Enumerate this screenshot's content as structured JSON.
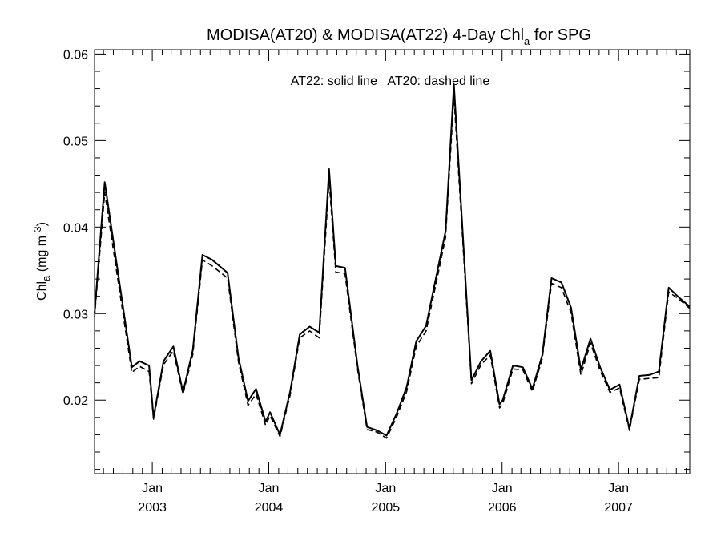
{
  "chart_data": {
    "type": "line",
    "title": {
      "main_before": "MODISA(AT20) & MODISA(AT22) 4-Day Chl",
      "main_sub": "a",
      "main_after": " for SPG"
    },
    "annotation": "AT22: solid line   AT20: dashed line",
    "ylabel": {
      "pre": "Chl",
      "sub": "a",
      "mid": " (mg m",
      "sup": "-3",
      "post": ")"
    },
    "ylim": [
      0.0115,
      0.0605
    ],
    "yticks": [
      0.02,
      0.03,
      0.04,
      0.05,
      0.06
    ],
    "ytick_labels": [
      "0.02",
      "0.03",
      "0.04",
      "0.05",
      "0.06"
    ],
    "xlim": [
      "2002-07-04",
      "2007-08-12"
    ],
    "xticks": [
      {
        "date": "2003-01-01",
        "month": "Jan",
        "year": "2003"
      },
      {
        "date": "2004-01-01",
        "month": "Jan",
        "year": "2004"
      },
      {
        "date": "2005-01-01",
        "month": "Jan",
        "year": "2005"
      },
      {
        "date": "2006-01-01",
        "month": "Jan",
        "year": "2006"
      },
      {
        "date": "2007-01-01",
        "month": "Jan",
        "year": "2007"
      }
    ],
    "series": [
      {
        "name": "AT22",
        "style": "solid",
        "x": [
          "2002-07-04",
          "2002-08-05",
          "2002-10-29",
          "2002-11-22",
          "2002-12-22",
          "2003-01-05",
          "2003-02-05",
          "2003-03-08",
          "2003-04-07",
          "2003-05-08",
          "2003-06-07",
          "2003-07-08",
          "2003-08-25",
          "2003-09-28",
          "2003-10-28",
          "2003-11-22",
          "2003-12-22",
          "2004-01-05",
          "2004-02-05",
          "2004-03-08",
          "2004-04-07",
          "2004-05-08",
          "2004-06-07",
          "2004-07-08",
          "2004-07-29",
          "2004-08-27",
          "2004-10-05",
          "2004-11-04",
          "2004-12-05",
          "2005-01-04",
          "2005-02-05",
          "2005-03-08",
          "2005-04-07",
          "2005-05-08",
          "2005-06-07",
          "2005-07-08",
          "2005-08-03",
          "2005-09-27",
          "2005-10-27",
          "2005-11-25",
          "2005-12-24",
          "2006-01-03",
          "2006-02-04",
          "2006-03-07",
          "2006-04-06",
          "2006-05-07",
          "2006-06-05",
          "2006-07-06",
          "2006-08-05",
          "2006-09-05",
          "2006-10-05",
          "2006-11-04",
          "2006-12-05",
          "2007-01-04",
          "2007-02-04",
          "2007-03-07",
          "2007-04-06",
          "2007-05-07",
          "2007-06-07",
          "2007-07-08",
          "2007-08-12"
        ],
        "y": [
          0.03,
          0.0452,
          0.0238,
          0.0245,
          0.024,
          0.018,
          0.0245,
          0.0262,
          0.0209,
          0.0258,
          0.0368,
          0.0362,
          0.0347,
          0.0249,
          0.0199,
          0.0213,
          0.0175,
          0.0186,
          0.016,
          0.021,
          0.0276,
          0.0285,
          0.0278,
          0.0467,
          0.0355,
          0.0353,
          0.024,
          0.0169,
          0.0165,
          0.0159,
          0.0185,
          0.0215,
          0.0268,
          0.0286,
          0.034,
          0.0395,
          0.0565,
          0.0223,
          0.0245,
          0.0257,
          0.0195,
          0.02,
          0.024,
          0.0238,
          0.0213,
          0.0252,
          0.0341,
          0.0336,
          0.0307,
          0.0235,
          0.0271,
          0.0238,
          0.0212,
          0.0218,
          0.0167,
          0.0228,
          0.0229,
          0.0233,
          0.033,
          0.0319,
          0.0308
        ]
      },
      {
        "name": "AT20",
        "style": "dashed",
        "x": [
          "2002-07-04",
          "2002-08-05",
          "2002-10-29",
          "2002-11-22",
          "2002-12-22",
          "2003-01-05",
          "2003-02-05",
          "2003-03-08",
          "2003-04-07",
          "2003-05-08",
          "2003-06-07",
          "2003-07-08",
          "2003-08-25",
          "2003-09-28",
          "2003-10-28",
          "2003-11-22",
          "2003-12-22",
          "2004-01-05",
          "2004-02-05",
          "2004-03-08",
          "2004-04-07",
          "2004-05-08",
          "2004-06-07",
          "2004-07-08",
          "2004-07-29",
          "2004-08-27",
          "2004-10-05",
          "2004-11-04",
          "2004-12-05",
          "2005-01-04",
          "2005-02-05",
          "2005-03-08",
          "2005-04-07",
          "2005-05-08",
          "2005-06-07",
          "2005-07-08",
          "2005-08-03",
          "2005-09-27",
          "2005-10-27",
          "2005-11-25",
          "2005-12-24",
          "2006-01-03",
          "2006-02-04",
          "2006-03-07",
          "2006-04-06",
          "2006-05-07",
          "2006-06-05",
          "2006-07-06",
          "2006-08-05",
          "2006-09-05",
          "2006-10-05",
          "2006-11-04",
          "2006-12-05",
          "2007-01-04",
          "2007-02-04",
          "2007-03-07",
          "2007-04-06",
          "2007-05-07",
          "2007-06-07",
          "2007-07-08",
          "2007-08-12"
        ],
        "y": [
          0.0296,
          0.044,
          0.0232,
          0.0239,
          0.0233,
          0.0178,
          0.0241,
          0.0257,
          0.0207,
          0.0253,
          0.0362,
          0.0355,
          0.0341,
          0.0244,
          0.0194,
          0.0207,
          0.0171,
          0.0182,
          0.0158,
          0.0206,
          0.0272,
          0.028,
          0.0272,
          0.0455,
          0.0348,
          0.0346,
          0.0236,
          0.0166,
          0.0163,
          0.0156,
          0.0181,
          0.021,
          0.0262,
          0.028,
          0.0333,
          0.0388,
          0.0552,
          0.0219,
          0.0241,
          0.0252,
          0.0191,
          0.0196,
          0.0236,
          0.0235,
          0.021,
          0.0248,
          0.0335,
          0.033,
          0.0301,
          0.0229,
          0.0266,
          0.0234,
          0.0209,
          0.0214,
          0.0165,
          0.0224,
          0.0225,
          0.0226,
          0.0325,
          0.0317,
          0.0306
        ]
      }
    ],
    "grid": false,
    "legend": "none"
  }
}
